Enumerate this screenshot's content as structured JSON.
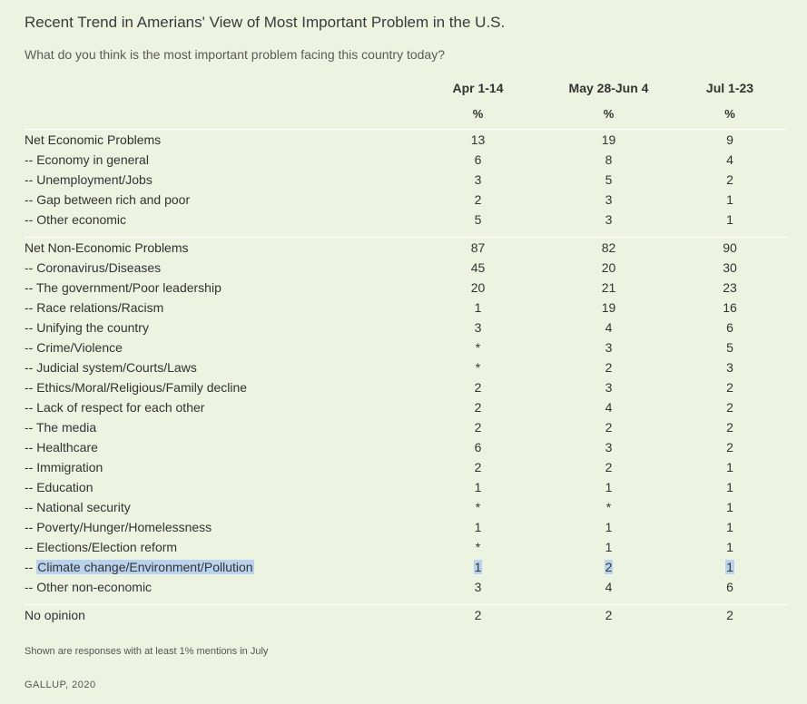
{
  "title": "Recent Trend in Amerians' View of Most Important Problem in the U.S.",
  "subtitle": "What do you think is the most important problem facing this country today?",
  "columns": [
    "Apr 1-14",
    "May 28-Jun 4",
    "Jul 1-23"
  ],
  "unit_row": [
    "%",
    "%",
    "%"
  ],
  "sections": [
    {
      "net": {
        "label": "Net Economic Problems",
        "values": [
          "13",
          "19",
          "9"
        ]
      },
      "rows": [
        {
          "label": "-- Economy in general",
          "values": [
            "6",
            "8",
            "4"
          ]
        },
        {
          "label": "-- Unemployment/Jobs",
          "values": [
            "3",
            "5",
            "2"
          ]
        },
        {
          "label": "-- Gap between rich and poor",
          "values": [
            "2",
            "3",
            "1"
          ]
        },
        {
          "label": "-- Other economic",
          "values": [
            "5",
            "3",
            "1"
          ]
        }
      ]
    },
    {
      "net": {
        "label": "Net Non-Economic Problems",
        "values": [
          "87",
          "82",
          "90"
        ]
      },
      "rows": [
        {
          "label": "-- Coronavirus/Diseases",
          "values": [
            "45",
            "20",
            "30"
          ]
        },
        {
          "label": "-- The government/Poor leadership",
          "values": [
            "20",
            "21",
            "23"
          ]
        },
        {
          "label": "-- Race relations/Racism",
          "values": [
            "1",
            "19",
            "16"
          ]
        },
        {
          "label": "-- Unifying the country",
          "values": [
            "3",
            "4",
            "6"
          ]
        },
        {
          "label": "-- Crime/Violence",
          "values": [
            "*",
            "3",
            "5"
          ]
        },
        {
          "label": "-- Judicial system/Courts/Laws",
          "values": [
            "*",
            "2",
            "3"
          ]
        },
        {
          "label": "-- Ethics/Moral/Religious/Family decline",
          "values": [
            "2",
            "3",
            "2"
          ]
        },
        {
          "label": "-- Lack of respect for each other",
          "values": [
            "2",
            "4",
            "2"
          ]
        },
        {
          "label": "-- The media",
          "values": [
            "2",
            "2",
            "2"
          ]
        },
        {
          "label": "-- Healthcare",
          "values": [
            "6",
            "3",
            "2"
          ]
        },
        {
          "label": "-- Immigration",
          "values": [
            "2",
            "2",
            "1"
          ]
        },
        {
          "label": "-- Education",
          "values": [
            "1",
            "1",
            "1"
          ]
        },
        {
          "label": "-- National security",
          "values": [
            "*",
            "*",
            "1"
          ]
        },
        {
          "label": "-- Poverty/Hunger/Homelessness",
          "values": [
            "1",
            "1",
            "1"
          ]
        },
        {
          "label": "-- Elections/Election reform",
          "values": [
            "*",
            "1",
            "1"
          ]
        },
        {
          "label_prefix": "-- ",
          "label_highlight": "Climate change/Environment/Pollution",
          "values": [
            "1",
            "2",
            "1"
          ],
          "highlighted": true
        },
        {
          "label": "-- Other non-economic",
          "values": [
            "3",
            "4",
            "6"
          ]
        }
      ]
    }
  ],
  "no_opinion": {
    "label": "No opinion",
    "values": [
      "2",
      "2",
      "2"
    ]
  },
  "footnote": "Shown are responses with at least 1% mentions in July",
  "source": "GALLUP, 2020",
  "colors": {
    "background": "#edf3e1",
    "separator": "#ffffff",
    "highlight": "#b9d3ee",
    "text": "#333333"
  }
}
